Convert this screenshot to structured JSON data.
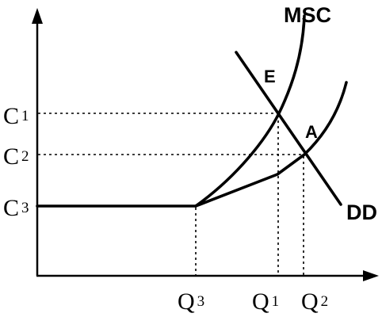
{
  "labels": {
    "msc": "MSC",
    "dd": "DD",
    "point_e": "E",
    "point_a": "A",
    "c1": {
      "main": "C",
      "sub": "1"
    },
    "c2": {
      "main": "C",
      "sub": "2"
    },
    "c3": {
      "main": "C",
      "sub": "3"
    },
    "q1": {
      "main": "Q",
      "sub": "1"
    },
    "q2": {
      "main": "Q",
      "sub": "2"
    },
    "q3": {
      "main": "Q",
      "sub": "3"
    }
  }
}
